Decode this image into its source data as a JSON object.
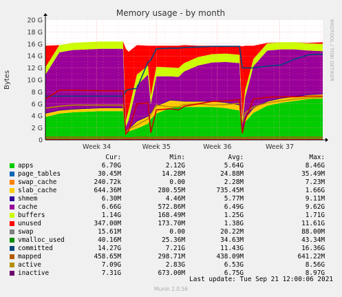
{
  "chart_data": {
    "type": "area",
    "title": "Memory usage - by month",
    "ylabel": "Bytes",
    "ylim": [
      0,
      20
    ],
    "y_unit": "G",
    "y_ticks": [
      "0",
      "2 G",
      "4 G",
      "6 G",
      "8 G",
      "10 G",
      "12 G",
      "14 G",
      "16 G",
      "18 G",
      "20 G"
    ],
    "x_ticks": [
      "Week 34",
      "Week 35",
      "Week 36",
      "Week 37"
    ],
    "watermark": "RRDTOOL / TOBI OETIKER",
    "legend_headers": [
      "Cur:",
      "Min:",
      "Avg:",
      "Max:"
    ],
    "series": [
      {
        "name": "apps",
        "color": "#00cc00",
        "stacked": true,
        "cur": "6.70G",
        "min": "2.12G",
        "avg": "5.64G",
        "max": "8.46G"
      },
      {
        "name": "page_tables",
        "color": "#0066b3",
        "stacked": true,
        "cur": "30.45M",
        "min": "14.28M",
        "avg": "24.88M",
        "max": "35.49M"
      },
      {
        "name": "swap_cache",
        "color": "#ff8000",
        "stacked": true,
        "cur": "240.72k",
        "min": "0.00",
        "avg": "2.28M",
        "max": "7.23M"
      },
      {
        "name": "slab_cache",
        "color": "#ffcc00",
        "stacked": true,
        "cur": "644.36M",
        "min": "280.55M",
        "avg": "735.45M",
        "max": "1.66G"
      },
      {
        "name": "shmem",
        "color": "#330099",
        "stacked": true,
        "cur": "6.30M",
        "min": "4.46M",
        "avg": "5.77M",
        "max": "9.11M"
      },
      {
        "name": "cache",
        "color": "#990099",
        "stacked": true,
        "cur": "6.66G",
        "min": "572.86M",
        "avg": "6.49G",
        "max": "9.62G"
      },
      {
        "name": "buffers",
        "color": "#ccff00",
        "stacked": true,
        "cur": "1.14G",
        "min": "168.49M",
        "avg": "1.25G",
        "max": "1.71G"
      },
      {
        "name": "unused",
        "color": "#ff0000",
        "stacked": true,
        "cur": "347.00M",
        "min": "173.70M",
        "avg": "1.38G",
        "max": "11.61G"
      },
      {
        "name": "swap",
        "color": "#808080",
        "stacked": true,
        "cur": "15.61M",
        "min": "0.00",
        "avg": "20.22M",
        "max": "88.00M"
      },
      {
        "name": "vmalloc_used",
        "color": "#008f00",
        "stacked": false,
        "cur": "40.16M",
        "min": "25.36M",
        "avg": "34.63M",
        "max": "43.34M"
      },
      {
        "name": "committed",
        "color": "#00487d",
        "stacked": false,
        "cur": "14.27G",
        "min": "7.21G",
        "avg": "11.43G",
        "max": "16.36G"
      },
      {
        "name": "mapped",
        "color": "#b35a00",
        "stacked": false,
        "cur": "458.65M",
        "min": "298.71M",
        "avg": "438.09M",
        "max": "641.22M"
      },
      {
        "name": "active",
        "color": "#b38f00",
        "stacked": false,
        "cur": "7.09G",
        "min": "2.83G",
        "avg": "6.53G",
        "max": "8.56G"
      },
      {
        "name": "inactive",
        "color": "#6b006b",
        "stacked": false,
        "cur": "7.31G",
        "min": "673.00M",
        "avg": "6.75G",
        "max": "8.97G"
      }
    ],
    "x_domain": [
      0,
      100
    ],
    "x_tick_positions": [
      18.5,
      40.0,
      62.0,
      84.5
    ],
    "stack": {
      "x": [
        0,
        5,
        10,
        20,
        28,
        29,
        30,
        33,
        37,
        38,
        40,
        45,
        48,
        50,
        55,
        60,
        65,
        70,
        71,
        72,
        75,
        80,
        85,
        90,
        95,
        100
      ],
      "apps": [
        3.6,
        4.2,
        4.4,
        4.6,
        4.6,
        0.8,
        1.2,
        1.7,
        2.5,
        3.3,
        4.2,
        5.1,
        5.3,
        5.3,
        5.3,
        5.3,
        5.1,
        4.7,
        0.9,
        2.8,
        4.3,
        5.5,
        6.0,
        6.3,
        6.6,
        6.7
      ],
      "slab": [
        0.6,
        0.5,
        0.5,
        0.5,
        0.5,
        0.3,
        0.4,
        1.2,
        1.2,
        1.0,
        1.2,
        1.3,
        1.0,
        0.9,
        0.9,
        0.9,
        0.9,
        0.9,
        0.4,
        0.6,
        0.8,
        0.7,
        0.7,
        0.7,
        0.7,
        0.7
      ],
      "cache": [
        6.5,
        9.7,
        9.9,
        9.9,
        9.9,
        0.9,
        1.5,
        6.0,
        7.0,
        1.5,
        5.0,
        4.0,
        4.0,
        5.0,
        6.0,
        6.5,
        6.8,
        7.0,
        1.2,
        3.5,
        7.0,
        8.5,
        8.2,
        7.9,
        7.4,
        7.2
      ],
      "buffers": [
        1.2,
        1.2,
        1.2,
        1.2,
        1.2,
        1.0,
        1.6,
        1.8,
        1.5,
        1.3,
        1.6,
        1.5,
        1.5,
        1.4,
        1.4,
        1.4,
        1.4,
        1.4,
        1.0,
        1.2,
        1.2,
        1.2,
        1.2,
        1.2,
        1.2,
        1.2
      ],
      "unused": [
        3.6,
        0.0,
        0.0,
        0.0,
        0.0,
        12.0,
        9.8,
        4.9,
        3.3,
        8.4,
        3.5,
        3.6,
        3.7,
        3.0,
        1.9,
        1.4,
        1.3,
        1.5,
        11.9,
        7.4,
        2.2,
        0.1,
        0.0,
        0.0,
        0.1,
        0.3
      ],
      "swap_band": [
        0.2,
        0.2,
        0.2,
        0.2,
        0.2,
        0.2,
        0.2,
        0.2,
        0.2,
        0.2,
        0.2,
        0.2,
        0.2,
        0.2,
        0.2,
        0.2,
        0.2,
        0.2,
        0.2,
        0.2,
        0.2,
        0.2,
        0.2,
        0.2,
        0.2,
        0.2
      ]
    },
    "lines": {
      "x": [
        0,
        5,
        10,
        20,
        28,
        29,
        30,
        33,
        37,
        38,
        40,
        45,
        48,
        50,
        55,
        60,
        65,
        70,
        71,
        72,
        75,
        80,
        85,
        90,
        95,
        100
      ],
      "committed": [
        7.3,
        7.3,
        7.3,
        7.3,
        7.3,
        8.2,
        8.4,
        8.6,
        13.0,
        13.3,
        15.2,
        15.3,
        15.3,
        15.4,
        15.5,
        15.6,
        15.6,
        15.6,
        12.0,
        12.0,
        12.0,
        12.3,
        12.5,
        13.5,
        14.2,
        14.3
      ],
      "active": [
        5.3,
        5.6,
        5.8,
        5.8,
        5.8,
        1.2,
        1.8,
        2.5,
        3.5,
        4.2,
        5.8,
        5.5,
        5.5,
        5.9,
        6.0,
        5.8,
        5.9,
        6.1,
        2.8,
        4.5,
        5.5,
        6.2,
        6.5,
        6.8,
        7.0,
        7.1
      ],
      "inactive": [
        6.8,
        8.3,
        8.3,
        8.2,
        8.2,
        1.0,
        1.5,
        6.0,
        6.2,
        1.2,
        5.0,
        5.2,
        5.0,
        5.6,
        6.0,
        6.4,
        6.5,
        6.7,
        1.1,
        3.3,
        6.8,
        7.1,
        7.2,
        7.2,
        7.3,
        7.3
      ],
      "mapped": [
        0.45,
        0.45,
        0.45,
        0.45,
        0.45,
        0.35,
        0.35,
        0.45,
        0.45,
        0.4,
        0.45,
        0.45,
        0.45,
        0.45,
        0.45,
        0.45,
        0.45,
        0.45,
        0.35,
        0.4,
        0.45,
        0.45,
        0.45,
        0.45,
        0.46,
        0.46
      ]
    }
  },
  "footer": {
    "last_update": "Last update:  Tue Sep 21 12:00:06 2021",
    "version": "Munin 2.0.56"
  }
}
